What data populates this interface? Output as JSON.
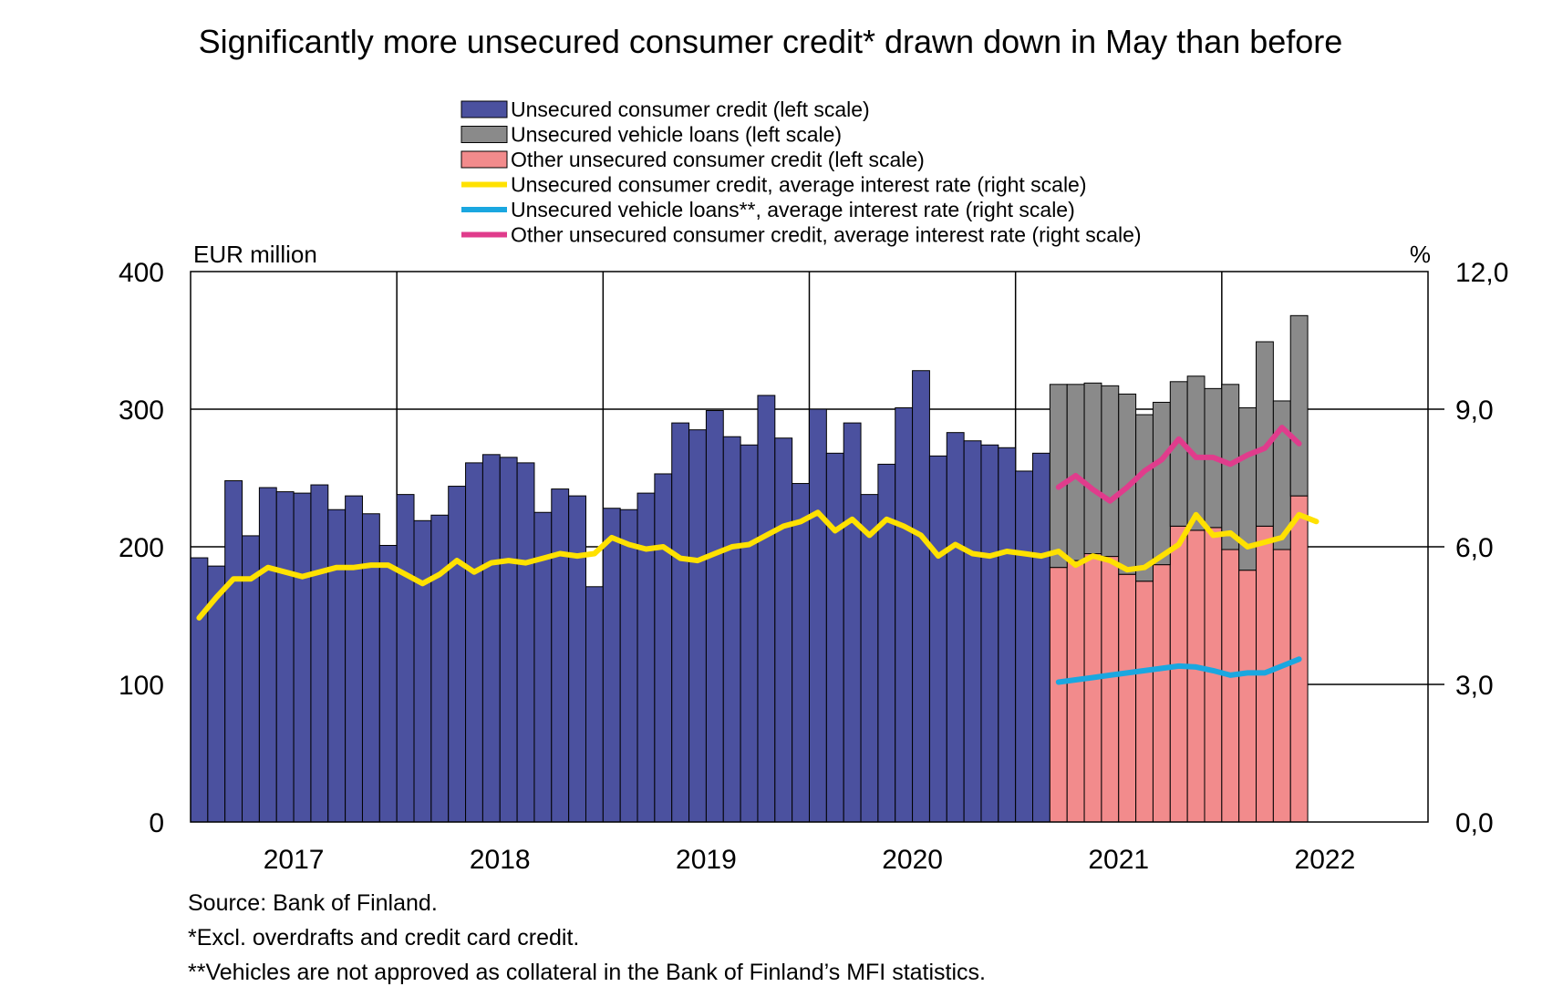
{
  "chart_data": {
    "type": "bar",
    "title": "Significantly more unsecured consumer credit* drawn down in May than before",
    "left_unit": "EUR million",
    "right_unit": "%",
    "left_ylim": [
      0,
      400
    ],
    "right_ylim": [
      0,
      12
    ],
    "left_ticks": [
      "0",
      "100",
      "200",
      "300",
      "400"
    ],
    "right_ticks": [
      "0,0",
      "3,0",
      "6,0",
      "9,0",
      "12,0"
    ],
    "x_tick_labels": [
      "2017",
      "2018",
      "2019",
      "2020",
      "2021",
      "2022"
    ],
    "x_start": "2017-01",
    "n_slots": 72,
    "legend": [
      {
        "label": "Unsecured consumer credit (left scale)",
        "kind": "box",
        "color": "#4b519f"
      },
      {
        "label": "Unsecured vehicle loans (left scale)",
        "kind": "box",
        "color": "#8a8a8a"
      },
      {
        "label": "Other unsecured consumer credit (left scale)",
        "kind": "box",
        "color": "#f28b8c"
      },
      {
        "label": "Unsecured consumer credit, average interest rate (right scale)",
        "kind": "line",
        "color": "#ffe100"
      },
      {
        "label": "Unsecured vehicle loans**, average interest rate (right scale)",
        "kind": "line",
        "color": "#1aa7e0"
      },
      {
        "label": "Other unsecured consumer credit, average interest rate (right scale)",
        "kind": "line",
        "color": "#e03c8c"
      }
    ],
    "series": [
      {
        "name": "Unsecured consumer credit (left scale)",
        "type": "bar",
        "axis": "left",
        "color": "#4b519f",
        "start": "2017-01",
        "values": [
          192,
          186,
          248,
          208,
          243,
          240,
          239,
          245,
          227,
          237,
          224,
          201,
          238,
          219,
          223,
          244,
          261,
          267,
          265,
          261,
          225,
          242,
          237,
          171,
          228,
          227,
          239,
          253,
          290,
          285,
          299,
          280,
          274,
          310,
          279,
          246,
          300,
          268,
          290,
          238,
          260,
          301,
          328,
          266,
          283,
          277,
          274,
          272,
          255,
          268
        ]
      },
      {
        "name": "Other unsecured consumer credit (left scale)",
        "type": "bar",
        "axis": "left",
        "stack": "new",
        "color": "#f28b8c",
        "start": "2021-03",
        "values": [
          185,
          190,
          195,
          193,
          180,
          175,
          187,
          215,
          212,
          214,
          198,
          183,
          215,
          198,
          237
        ]
      },
      {
        "name": "Unsecured vehicle loans (left scale)",
        "type": "bar",
        "axis": "left",
        "stack": "new",
        "color": "#8a8a8a",
        "start": "2021-03",
        "values": [
          133,
          128,
          124,
          124,
          131,
          121,
          118,
          105,
          112,
          101,
          120,
          118,
          134,
          108,
          131
        ]
      },
      {
        "name": "Unsecured consumer credit, average interest rate (right scale)",
        "type": "line",
        "axis": "right",
        "color": "#ffe100",
        "start": "2017-01",
        "values": [
          4.45,
          4.9,
          5.3,
          5.3,
          5.55,
          5.45,
          5.35,
          5.45,
          5.55,
          5.55,
          5.6,
          5.6,
          5.4,
          5.2,
          5.4,
          5.7,
          5.45,
          5.65,
          5.7,
          5.65,
          5.75,
          5.85,
          5.8,
          5.85,
          6.2,
          6.05,
          5.95,
          6.0,
          5.75,
          5.7,
          5.85,
          6.0,
          6.05,
          6.25,
          6.45,
          6.55,
          6.75,
          6.35,
          6.6,
          6.25,
          6.6,
          6.45,
          6.25,
          5.8,
          6.05,
          5.85,
          5.8,
          5.9,
          5.85,
          5.8,
          5.9,
          5.6,
          5.8,
          5.7,
          5.5,
          5.55,
          5.8,
          6.05,
          6.7,
          6.25,
          6.3,
          6.0,
          6.1,
          6.2,
          6.7,
          6.55
        ]
      },
      {
        "name": "Unsecured vehicle loans**, average interest rate (right scale)",
        "type": "line",
        "axis": "right",
        "color": "#1aa7e0",
        "start": "2021-03",
        "values": [
          3.05,
          3.1,
          3.15,
          3.2,
          3.25,
          3.3,
          3.35,
          3.4,
          3.38,
          3.3,
          3.2,
          3.25,
          3.25,
          3.4,
          3.55
        ]
      },
      {
        "name": "Other unsecured consumer credit, average interest rate (right scale)",
        "type": "line",
        "axis": "right",
        "color": "#e03c8c",
        "start": "2021-03",
        "values": [
          7.3,
          7.55,
          7.25,
          7.0,
          7.3,
          7.65,
          7.9,
          8.35,
          7.95,
          7.95,
          7.8,
          8.0,
          8.15,
          8.6,
          8.25
        ]
      }
    ]
  },
  "notes": [
    "Source: Bank of Finland.",
    "*Excl. overdrafts and credit card credit.",
    "**Vehicles are not approved as collateral in the Bank of Finland’s MFI statistics."
  ]
}
